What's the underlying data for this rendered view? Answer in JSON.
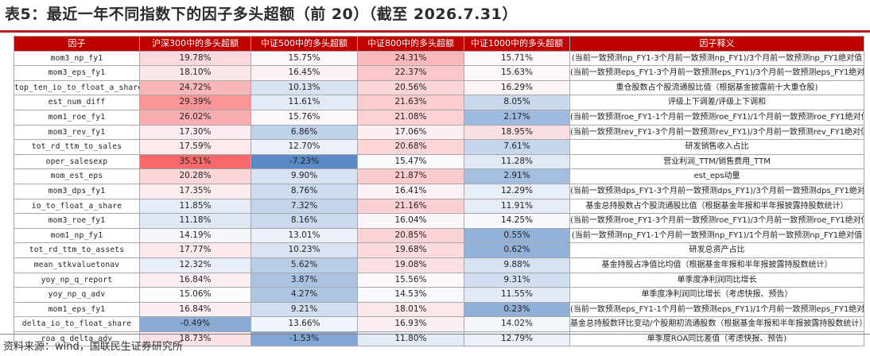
{
  "title": "表5：最近一年不同指数下的因子多头超额（前 20）（截至 2026.7.31）",
  "table": {
    "headers": [
      "因子",
      "沪深300中的多头超额",
      "中证500中的多头超额",
      "中证800中的多头超额",
      "中证1000中的多头超额",
      "因子释义"
    ],
    "rows": [
      {
        "factor": "mom3_np_fy1",
        "hs300": "19.78%",
        "zz500": "15.75%",
        "zz800": "24.31%",
        "zz1000": "15.71%",
        "desc": "(当前一致预测np_FY1-3个月前一致预测np_FY1)/3个月前一致预测np_FY1绝对值"
      },
      {
        "factor": "mom3_eps_fy1",
        "hs300": "18.10%",
        "zz500": "16.45%",
        "zz800": "22.37%",
        "zz1000": "15.63%",
        "desc": "(当前一致预测eps_FY1-3个月前一致预测eps_FY1)/3个月前一致预测eps_FY1绝对值"
      },
      {
        "factor": "top_ten_io_to_float_a_share",
        "hs300": "24.72%",
        "zz500": "10.13%",
        "zz800": "20.56%",
        "zz1000": "16.29%",
        "desc": "重仓股数占个股流通股比值（根据基金披露前十大重仓股)"
      },
      {
        "factor": "est_num_diff",
        "hs300": "29.39%",
        "zz500": "11.61%",
        "zz800": "21.63%",
        "zz1000": "8.05%",
        "desc": "评级上下调差/评级上下调和"
      },
      {
        "factor": "mom1_roe_fy1",
        "hs300": "26.02%",
        "zz500": "15.76%",
        "zz800": "21.08%",
        "zz1000": "2.17%",
        "desc": "(当前一致预测roe_FY1-1个月前一致预测roe_FY1)/1个月前一致预测roe_FY1绝对值"
      },
      {
        "factor": "mom3_rev_fy1",
        "hs300": "17.30%",
        "zz500": "6.86%",
        "zz800": "17.06%",
        "zz1000": "18.95%",
        "desc": "(当前一致预测rev_FY1-3个月前一致预测rev_FY1)/3个月前一致预测rev_FY1绝对值"
      },
      {
        "factor": "tot_rd_ttm_to_sales",
        "hs300": "17.59%",
        "zz500": "12.70%",
        "zz800": "20.68%",
        "zz1000": "7.61%",
        "desc": "研发销售收入占比"
      },
      {
        "factor": "oper_salesexp",
        "hs300": "35.51%",
        "zz500": "-7.23%",
        "zz800": "15.47%",
        "zz1000": "11.28%",
        "desc": "营业利润_TTM/销售费用_TTM"
      },
      {
        "factor": "mom_est_eps",
        "hs300": "20.28%",
        "zz500": "9.90%",
        "zz800": "21.87%",
        "zz1000": "2.91%",
        "desc": "est_eps动量"
      },
      {
        "factor": "mom3_dps_fy1",
        "hs300": "17.35%",
        "zz500": "8.76%",
        "zz800": "16.41%",
        "zz1000": "12.29%",
        "desc": "(当前一致预测dps_FY1-3个月前一致预测dps_FY1)/3个月前一致预测dps_FY1绝对值"
      },
      {
        "factor": "io_to_float_a_share",
        "hs300": "11.85%",
        "zz500": "7.32%",
        "zz800": "21.16%",
        "zz1000": "11.91%",
        "desc": "基金总持股数占个股流通股比值（根据基金年报和半年报披露持股数统计）"
      },
      {
        "factor": "mom3_roe_fy1",
        "hs300": "11.18%",
        "zz500": "8.16%",
        "zz800": "16.04%",
        "zz1000": "14.25%",
        "desc": "(当前一致预测roe_FY1-3个月前一致预测roe_FY1)/3个月前一致预测roe_FY1绝对值"
      },
      {
        "factor": "mom1_np_fy1",
        "hs300": "14.19%",
        "zz500": "13.01%",
        "zz800": "20.85%",
        "zz1000": "0.55%",
        "desc": "(当前一致预测np_FY1-1个月前一致预测np_FY1)/1个月前一致预测np_FY1绝对值"
      },
      {
        "factor": "tot_rd_ttm_to_assets",
        "hs300": "17.77%",
        "zz500": "10.23%",
        "zz800": "19.68%",
        "zz1000": "0.62%",
        "desc": "研发总资产占比"
      },
      {
        "factor": "mean_stkvaluetonav",
        "hs300": "12.32%",
        "zz500": "5.62%",
        "zz800": "19.08%",
        "zz1000": "9.88%",
        "desc": "基金持股占净值比均值（根据基金年报和半年报披露持股数统计）"
      },
      {
        "factor": "yoy_np_q_report",
        "hs300": "16.84%",
        "zz500": "3.87%",
        "zz800": "15.56%",
        "zz1000": "9.31%",
        "desc": "单季度净利润同比增长"
      },
      {
        "factor": "yoy_np_q_adv",
        "hs300": "15.06%",
        "zz500": "4.27%",
        "zz800": "14.53%",
        "zz1000": "11.55%",
        "desc": "单季度净利润同比增长（考虑快报、预告）"
      },
      {
        "factor": "mom1_eps_fy1",
        "hs300": "16.84%",
        "zz500": "9.21%",
        "zz800": "18.01%",
        "zz1000": "0.23%",
        "desc": "(当前一致预测eps_FY1-1个月前一致预测eps_FY1)/1个月前一致预测eps_FY1绝对值"
      },
      {
        "factor": "delta_io_to_float_share",
        "hs300": "-0.49%",
        "zz500": "13.66%",
        "zz800": "16.93%",
        "zz1000": "14.02%",
        "desc": "基金总持股数环比变动/个股期初流通股数（根据基金年报和半年报披露持股数统计）"
      },
      {
        "factor": "roa_q_delta_adv",
        "hs300": "18.73%",
        "zz500": "-1.53%",
        "zz800": "11.80%",
        "zz1000": "12.79%",
        "desc": "单季度ROA同比差值（考虑快报、预告)"
      }
    ]
  },
  "colors": {
    "header_bg": "#c00000",
    "rule": "#b41f24",
    "high": "#f8696b",
    "mid": "#fcfcff",
    "low": "#5a8ac6"
  },
  "source": "资料来源：wind，国联民生证券研究所"
}
